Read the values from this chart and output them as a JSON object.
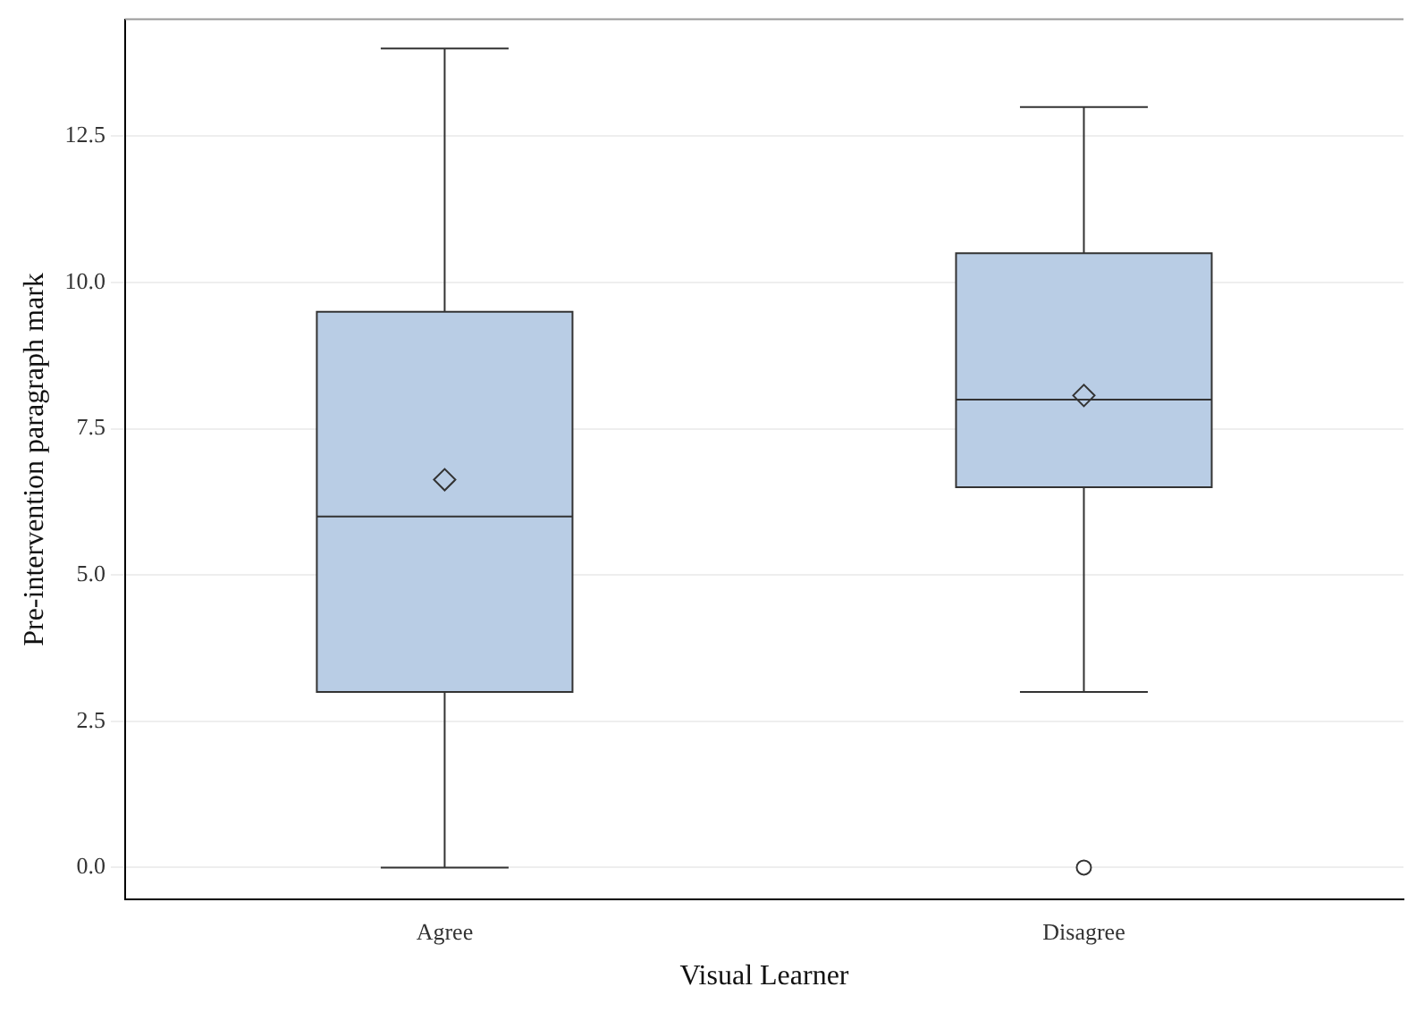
{
  "chart_data": {
    "type": "box",
    "xlabel": "Visual Learner",
    "ylabel": "Pre-intervention paragraph mark",
    "categories": [
      "Agree",
      "Disagree"
    ],
    "color": "#b9cde5",
    "boxes": [
      {
        "low": 0,
        "q1": 3,
        "median": 6,
        "q3": 9.5,
        "high": 14,
        "mean": 6.63
      },
      {
        "low": 3,
        "q1": 6.5,
        "median": 8,
        "q3": 10.5,
        "high": 13,
        "mean": 8.07,
        "outliers": [
          0
        ]
      }
    ],
    "ylim": [
      -0.55,
      14.5
    ],
    "yticks": [
      {
        "value": 0,
        "label": "0.0"
      },
      {
        "value": 2.5,
        "label": "2.5"
      },
      {
        "value": 5,
        "label": "5.0"
      },
      {
        "value": 7.5,
        "label": "7.5"
      },
      {
        "value": 10,
        "label": "10.0"
      },
      {
        "value": 12.5,
        "label": "12.5"
      }
    ],
    "grid": "y"
  }
}
